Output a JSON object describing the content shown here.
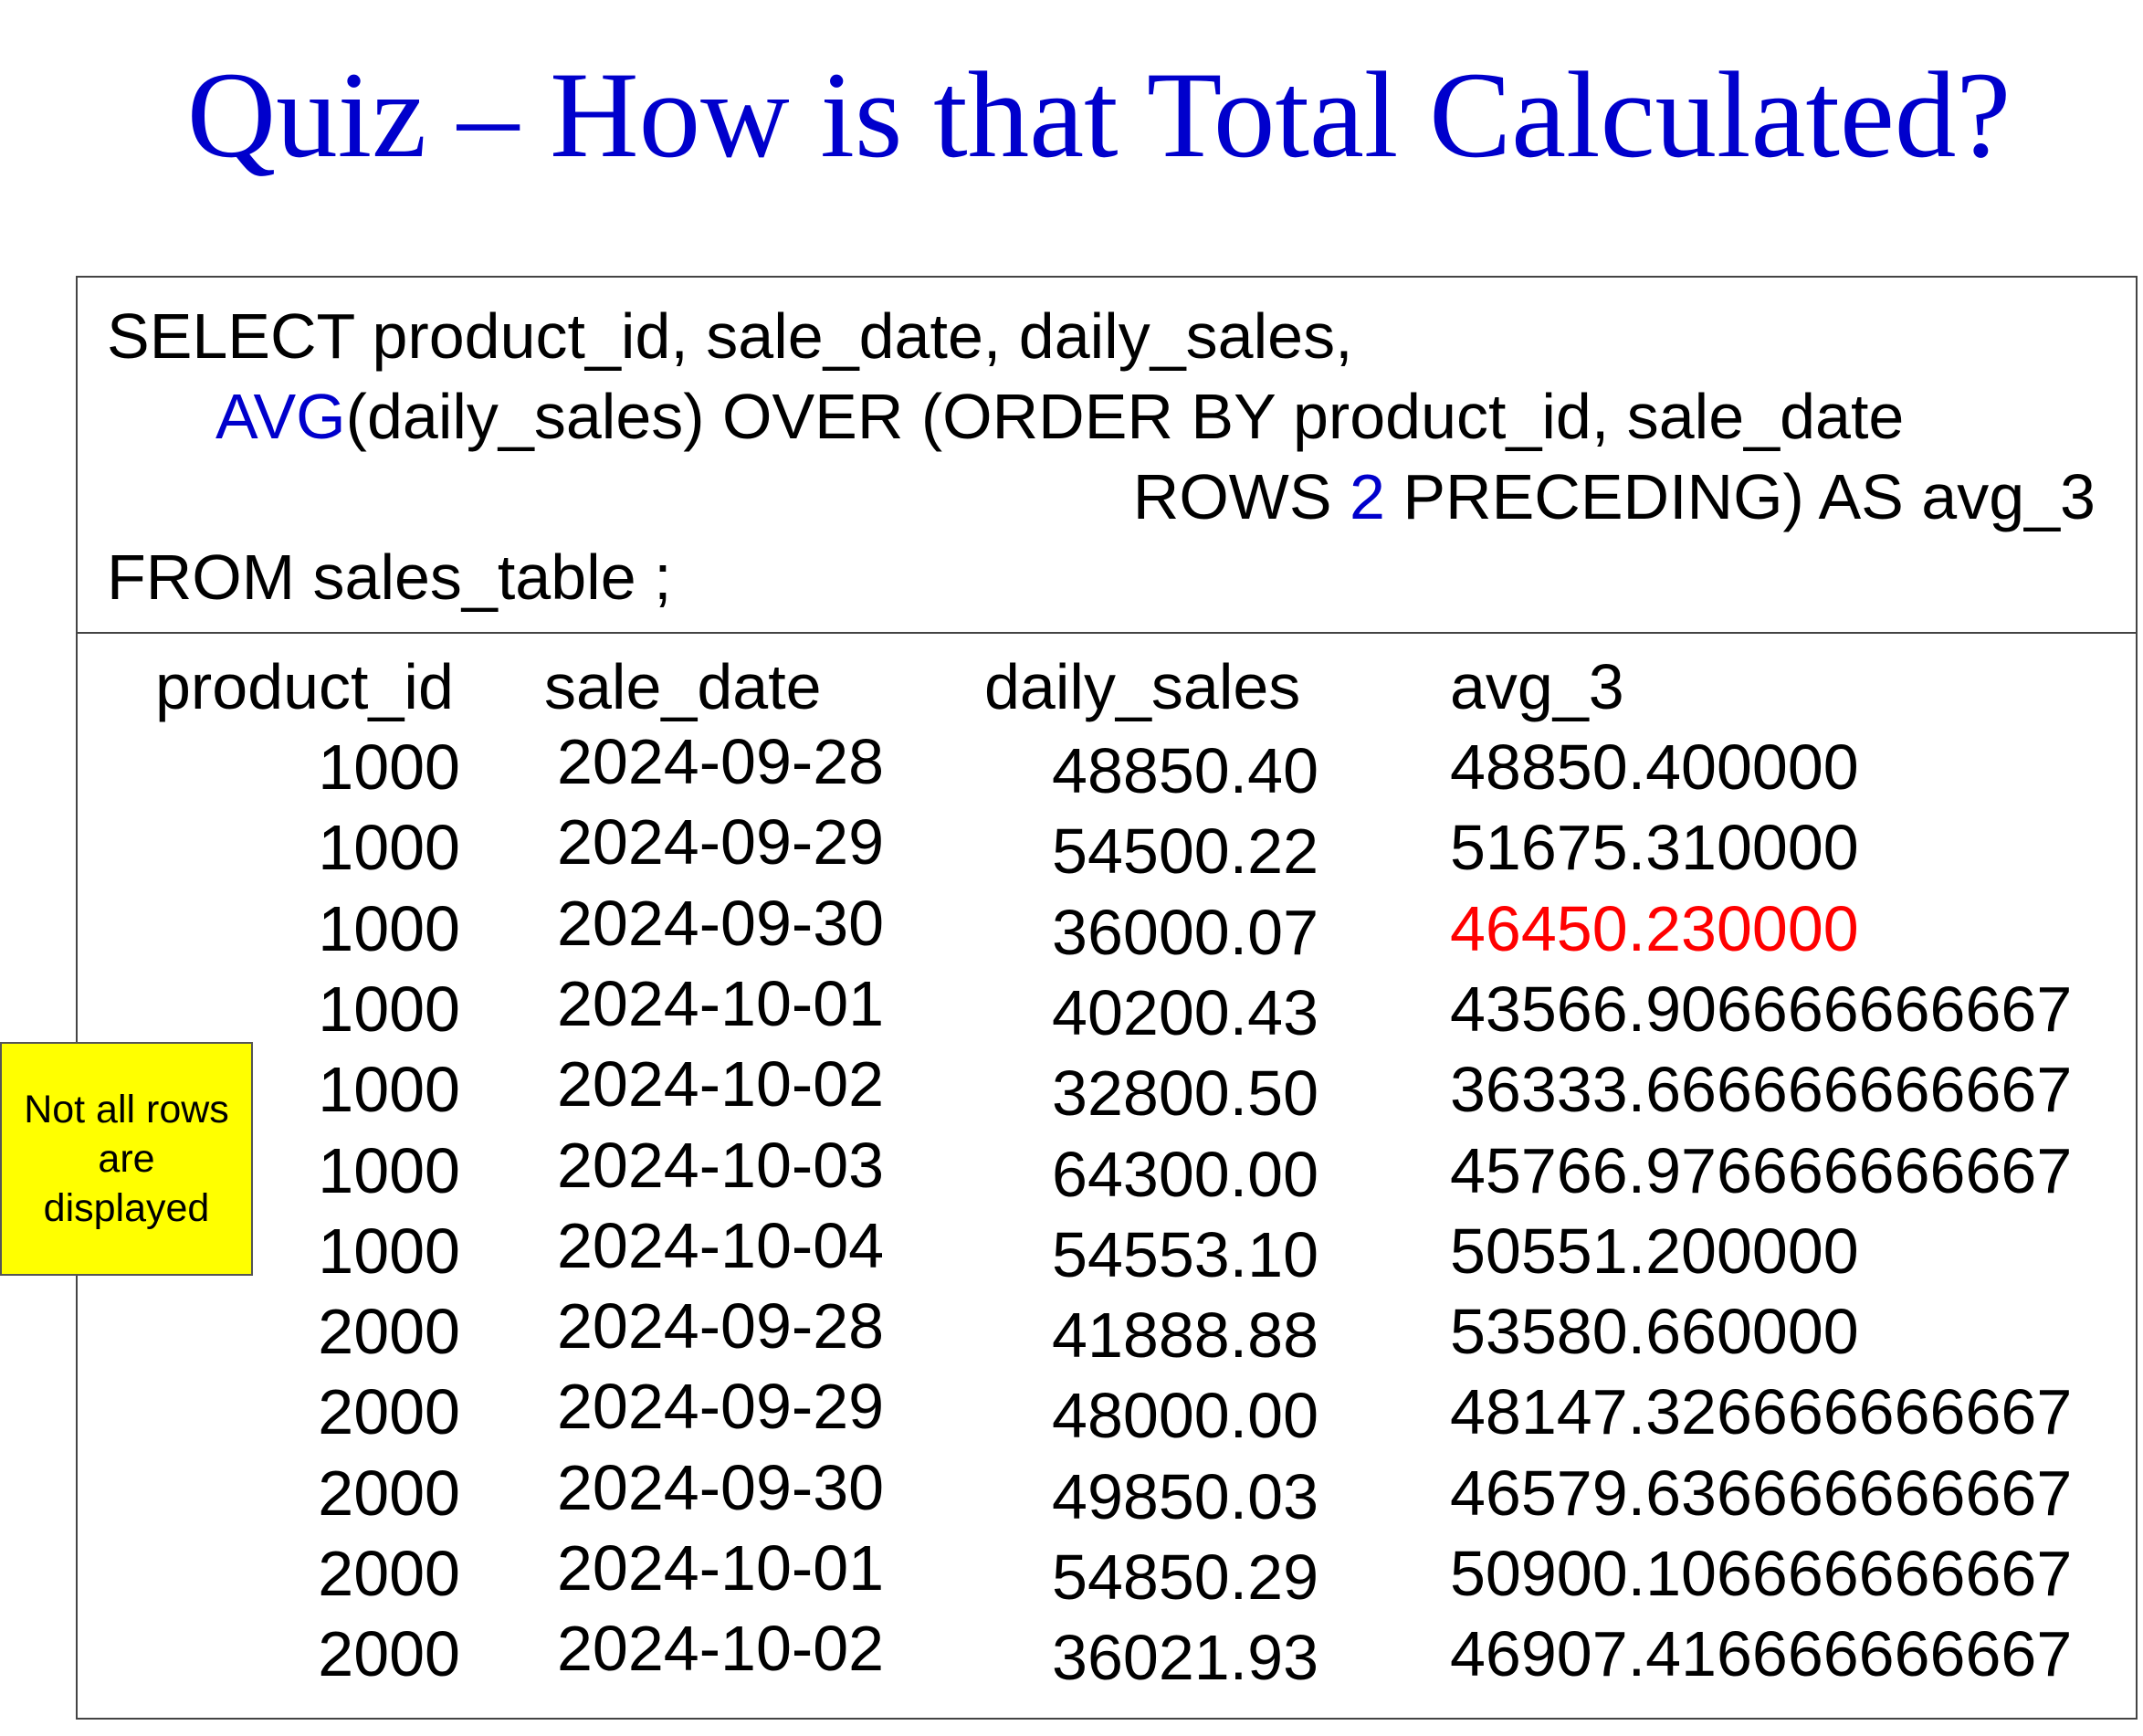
{
  "title": "Quiz – How is that Total Calculated?",
  "colors": {
    "title": "#0000cc",
    "keyword": "#0000cc",
    "highlight": "#ff0000",
    "note_bg": "#ffff00"
  },
  "sql": {
    "line1": "SELECT product_id, sale_date, daily_sales,",
    "line2_func": "AVG",
    "line2_rest": "(daily_sales) OVER (ORDER BY product_id, sale_date",
    "line3_pre": "ROWS ",
    "line3_num": "2",
    "line3_post": " PRECEDING) AS avg_3",
    "line4": "FROM  sales_table ;"
  },
  "table": {
    "headers": [
      "product_id",
      "sale_date",
      "daily_sales",
      "avg_3"
    ],
    "rows": [
      [
        "1000",
        "2024-09-28",
        "48850.40",
        "48850.400000"
      ],
      [
        "1000",
        "2024-09-29",
        "54500.22",
        "51675.310000"
      ],
      [
        "1000",
        "2024-09-30",
        "36000.07",
        "46450.230000"
      ],
      [
        "1000",
        "2024-10-01",
        "40200.43",
        "43566.906666666667"
      ],
      [
        "1000",
        "2024-10-02",
        "32800.50",
        "36333.666666666667"
      ],
      [
        "1000",
        "2024-10-03",
        "64300.00",
        "45766.976666666667"
      ],
      [
        "1000",
        "2024-10-04",
        "54553.10",
        "50551.200000"
      ],
      [
        "2000",
        "2024-09-28",
        "41888.88",
        "53580.660000"
      ],
      [
        "2000",
        "2024-09-29",
        "48000.00",
        "48147.326666666667"
      ],
      [
        "2000",
        "2024-09-30",
        "49850.03",
        "46579.636666666667"
      ],
      [
        "2000",
        "2024-10-01",
        "54850.29",
        "50900.106666666667"
      ],
      [
        "2000",
        "2024-10-02",
        "36021.93",
        "46907.416666666667"
      ]
    ],
    "highlight_row": 2
  },
  "note": {
    "text": "Not all rows are displayed"
  }
}
